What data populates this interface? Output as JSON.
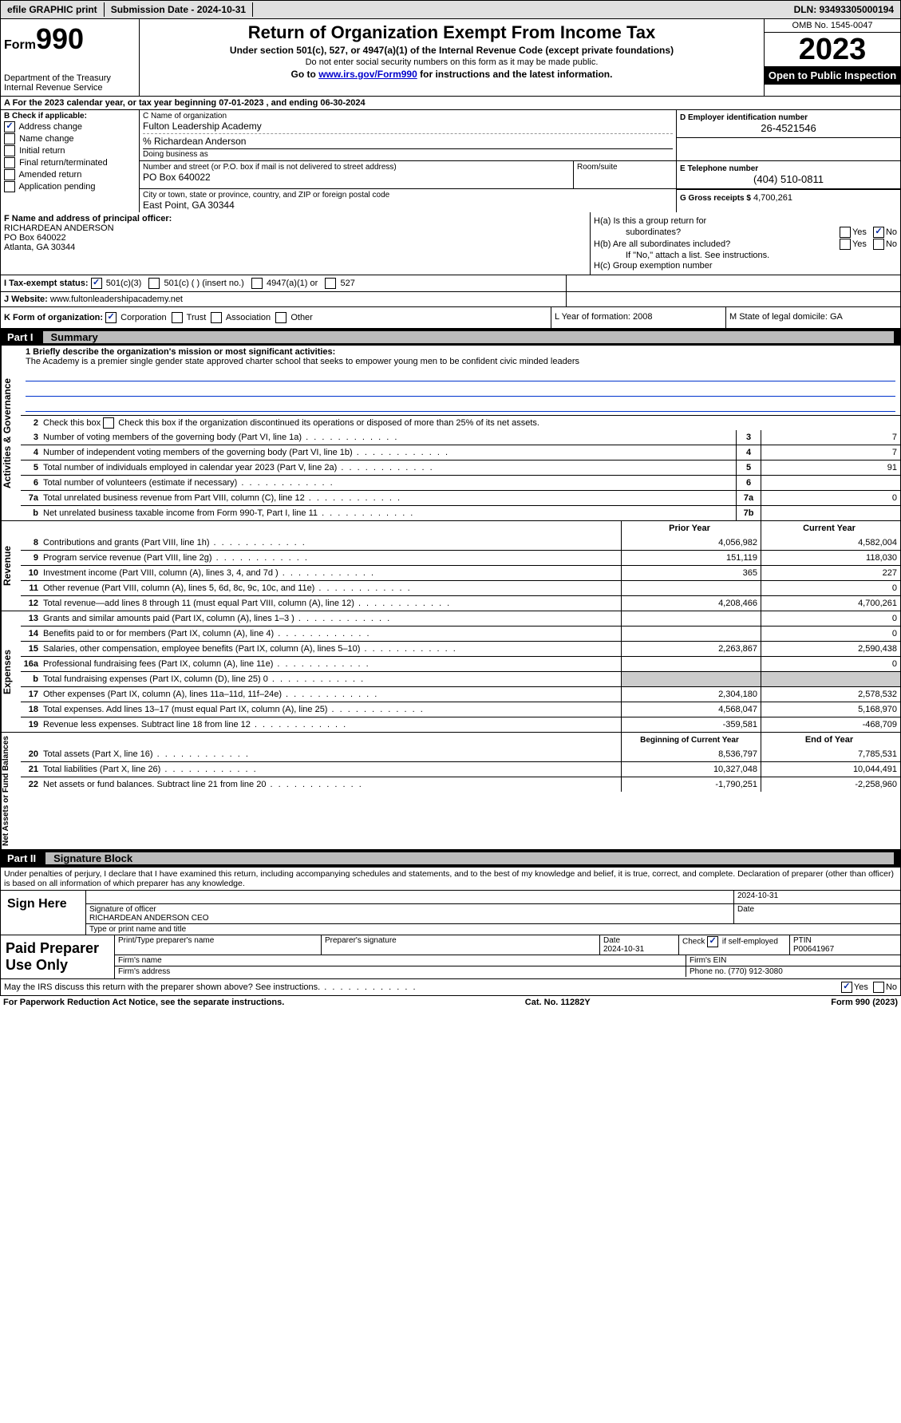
{
  "topbar": {
    "efile": "efile GRAPHIC print",
    "submission": "Submission Date - 2024-10-31",
    "dln": "DLN: 93493305000194"
  },
  "header": {
    "form_label": "Form",
    "form_num": "990",
    "title": "Return of Organization Exempt From Income Tax",
    "sub1": "Under section 501(c), 527, or 4947(a)(1) of the Internal Revenue Code (except private foundations)",
    "sub2": "Do not enter social security numbers on this form as it may be made public.",
    "sub3_pre": "Go to ",
    "sub3_link": "www.irs.gov/Form990",
    "sub3_post": " for instructions and the latest information.",
    "dept": "Department of the Treasury\nInternal Revenue Service",
    "omb": "OMB No. 1545-0047",
    "year": "2023",
    "insp": "Open to Public Inspection"
  },
  "row_a": "A   For the 2023 calendar year, or tax year beginning 07-01-2023    , and ending 06-30-2024",
  "box_b": {
    "label": "B Check if applicable:",
    "items": [
      "Address change",
      "Name change",
      "Initial return",
      "Final return/terminated",
      "Amended return",
      "Application pending"
    ],
    "checked": [
      true,
      false,
      false,
      false,
      false,
      false
    ]
  },
  "box_c": {
    "name_lbl": "C Name of organization",
    "name": "Fulton Leadership Academy",
    "care_of": "% Richardean Anderson",
    "dba_lbl": "Doing business as",
    "dba": "",
    "addr_lbl": "Number and street (or P.O. box if mail is not delivered to street address)",
    "addr": "PO Box 640022",
    "room_lbl": "Room/suite",
    "room": "",
    "city_lbl": "City or town, state or province, country, and ZIP or foreign postal code",
    "city": "East Point, GA   30344"
  },
  "box_d": {
    "ein_lbl": "D Employer identification number",
    "ein": "26-4521546",
    "tel_lbl": "E Telephone number",
    "tel": "(404) 510-0811",
    "gross_lbl": "G Gross receipts $",
    "gross": "4,700,261"
  },
  "box_f": {
    "lbl": "F Name and address of principal officer:",
    "name": "RICHARDEAN ANDERSON",
    "addr1": "PO Box 640022",
    "addr2": "Atlanta, GA   30344"
  },
  "box_h": {
    "ha": "H(a)  Is this a group return for",
    "ha2": "subordinates?",
    "hb": "H(b)  Are all subordinates included?",
    "hb_note": "If \"No,\" attach a list. See instructions.",
    "hc": "H(c)  Group exemption number  "
  },
  "row_i": {
    "lbl": "I      Tax-exempt status:",
    "opts": [
      "501(c)(3)",
      "501(c) (  ) (insert no.)",
      "4947(a)(1) or",
      "527"
    ]
  },
  "row_j": {
    "lbl": "J     Website: ",
    "val": "www.fultonleadershipacademy.net"
  },
  "row_k": "K Form of organization:",
  "row_k_opts": [
    "Corporation",
    "Trust",
    "Association",
    "Other"
  ],
  "row_l": "L Year of formation: 2008",
  "row_m": "M State of legal domicile: GA",
  "part1": {
    "hdr_part": "Part I",
    "hdr_title": "Summary",
    "l1_lbl": "1   Briefly describe the organization's mission or most significant activities:",
    "l1_text": "The Academy is a premier single gender state approved charter school that seeks to empower young men to be confident civic minded leaders",
    "l2": "Check this box           if the organization discontinued its operations or disposed of more than 25% of its net assets.",
    "lines_gov": [
      {
        "n": "3",
        "d": "Number of voting members of the governing body (Part VI, line 1a)",
        "box": "3",
        "v": "7"
      },
      {
        "n": "4",
        "d": "Number of independent voting members of the governing body (Part VI, line 1b)",
        "box": "4",
        "v": "7"
      },
      {
        "n": "5",
        "d": "Total number of individuals employed in calendar year 2023 (Part V, line 2a)",
        "box": "5",
        "v": "91"
      },
      {
        "n": "6",
        "d": "Total number of volunteers (estimate if necessary)",
        "box": "6",
        "v": ""
      },
      {
        "n": "7a",
        "d": "Total unrelated business revenue from Part VIII, column (C), line 12",
        "box": "7a",
        "v": "0"
      },
      {
        "n": "b",
        "d": "Net unrelated business taxable income from Form 990-T, Part I, line 11",
        "box": "7b",
        "v": ""
      }
    ],
    "rev_hdr": {
      "py": "Prior Year",
      "cy": "Current Year"
    },
    "lines_rev": [
      {
        "n": "8",
        "d": "Contributions and grants (Part VIII, line 1h)",
        "py": "4,056,982",
        "cy": "4,582,004"
      },
      {
        "n": "9",
        "d": "Program service revenue (Part VIII, line 2g)",
        "py": "151,119",
        "cy": "118,030"
      },
      {
        "n": "10",
        "d": "Investment income (Part VIII, column (A), lines 3, 4, and 7d )",
        "py": "365",
        "cy": "227"
      },
      {
        "n": "11",
        "d": "Other revenue (Part VIII, column (A), lines 5, 6d, 8c, 9c, 10c, and 11e)",
        "py": "",
        "cy": "0"
      },
      {
        "n": "12",
        "d": "Total revenue—add lines 8 through 11 (must equal Part VIII, column (A), line 12)",
        "py": "4,208,466",
        "cy": "4,700,261"
      }
    ],
    "lines_exp": [
      {
        "n": "13",
        "d": "Grants and similar amounts paid (Part IX, column (A), lines 1–3 )",
        "py": "",
        "cy": "0"
      },
      {
        "n": "14",
        "d": "Benefits paid to or for members (Part IX, column (A), line 4)",
        "py": "",
        "cy": "0"
      },
      {
        "n": "15",
        "d": "Salaries, other compensation, employee benefits (Part IX, column (A), lines 5–10)",
        "py": "2,263,867",
        "cy": "2,590,438"
      },
      {
        "n": "16a",
        "d": "Professional fundraising fees (Part IX, column (A), line 11e)",
        "py": "",
        "cy": "0"
      },
      {
        "n": "b",
        "d": "Total fundraising expenses (Part IX, column (D), line 25) 0",
        "py": "grey",
        "cy": "grey"
      },
      {
        "n": "17",
        "d": "Other expenses (Part IX, column (A), lines 11a–11d, 11f–24e)",
        "py": "2,304,180",
        "cy": "2,578,532"
      },
      {
        "n": "18",
        "d": "Total expenses. Add lines 13–17 (must equal Part IX, column (A), line 25)",
        "py": "4,568,047",
        "cy": "5,168,970"
      },
      {
        "n": "19",
        "d": "Revenue less expenses. Subtract line 18 from line 12",
        "py": "-359,581",
        "cy": "-468,709"
      }
    ],
    "na_hdr": {
      "py": "Beginning of Current Year",
      "cy": "End of Year"
    },
    "lines_na": [
      {
        "n": "20",
        "d": "Total assets (Part X, line 16)",
        "py": "8,536,797",
        "cy": "7,785,531"
      },
      {
        "n": "21",
        "d": "Total liabilities (Part X, line 26)",
        "py": "10,327,048",
        "cy": "10,044,491"
      },
      {
        "n": "22",
        "d": "Net assets or fund balances. Subtract line 21 from line 20",
        "py": "-1,790,251",
        "cy": "-2,258,960"
      }
    ]
  },
  "part2": {
    "hdr_part": "Part II",
    "hdr_title": "Signature Block",
    "decl": "Under penalties of perjury, I declare that I have examined this return, including accompanying schedules and statements, and to the best of my knowledge and belief, it is true, correct, and complete. Declaration of preparer (other than officer) is based on all information of which preparer has any knowledge.",
    "sign_here": "Sign Here",
    "sig_date": "2024-10-31",
    "sig_lbl": "Signature of officer",
    "sig_name": "RICHARDEAN ANDERSON CEO",
    "sig_type_lbl": "Type or print name and title",
    "date_lbl": "Date",
    "paid": "Paid Preparer Use Only",
    "prep_name_lbl": "Print/Type preparer's name",
    "prep_sig_lbl": "Preparer's signature",
    "prep_date_lbl": "Date",
    "prep_date": "2024-10-31",
    "check_lbl": "Check         if self-employed",
    "ptin_lbl": "PTIN",
    "ptin": "P00641967",
    "firm_name_lbl": "Firm's name   ",
    "firm_ein_lbl": "Firm's EIN   ",
    "firm_addr_lbl": "Firm's address   ",
    "firm_phone_lbl": "Phone no.",
    "firm_phone": "(770) 912-3080"
  },
  "footer": {
    "discuss": "May the IRS discuss this return with the preparer shown above? See instructions.",
    "paperwork": "For Paperwork Reduction Act Notice, see the separate instructions.",
    "cat": "Cat. No. 11282Y",
    "form": "Form 990 (2023)"
  }
}
